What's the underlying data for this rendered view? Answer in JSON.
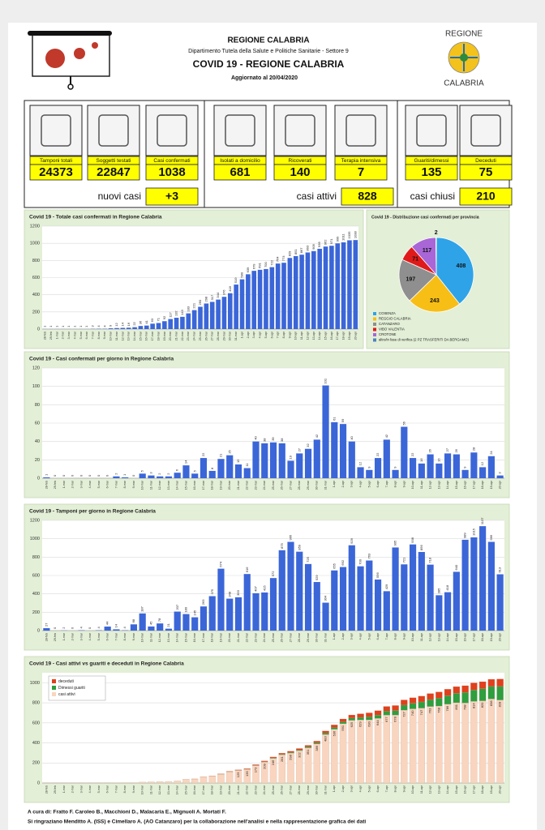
{
  "header": {
    "region": "REGIONE CALABRIA",
    "department": "Dipartimento Tutela della Salute e Politiche Sanitarie - Settore 9",
    "title": "COVID 19 - REGIONE CALABRIA",
    "updated": "Aggiornato al  20/04/2020",
    "logo_top": "REGIONE",
    "logo_bottom": "CALABRIA"
  },
  "stats": [
    {
      "label": "Tamponi totali",
      "value": 24373
    },
    {
      "label": "Soggetti testati",
      "value": 22847
    },
    {
      "label": "Casi confermati",
      "value": 1038
    },
    {
      "label": "Isolati a domicilio",
      "value": 681
    },
    {
      "label": "Ricoverati",
      "value": 140
    },
    {
      "label": "Terapia intensiva",
      "value": 7
    },
    {
      "label": "Guariti/dimessi",
      "value": 135
    },
    {
      "label": "Deceduti",
      "value": 75
    }
  ],
  "summary": [
    {
      "label": "nuovi casi",
      "value": "+3"
    },
    {
      "label": "casi attivi",
      "value": 828
    },
    {
      "label": "casi chiusi",
      "value": 210
    }
  ],
  "chart_data": [
    {
      "type": "bar",
      "title": "Covid 19 - Totale casi confermati in Regione Calabria",
      "categories": [
        "28-feb",
        "29-feb",
        "1-mar",
        "2-mar",
        "3-mar",
        "4-mar",
        "5-mar",
        "6-mar",
        "7-mar",
        "8-mar",
        "9-mar",
        "10-mar",
        "11-mar",
        "12-mar",
        "13-mar",
        "14-mar",
        "15-mar",
        "16-mar",
        "17-mar",
        "18-mar",
        "19-mar",
        "20-mar",
        "21-mar",
        "22-mar",
        "23-mar",
        "24-mar",
        "25-mar",
        "26-mar",
        "27-mar",
        "28-mar",
        "29-mar",
        "30-mar",
        "31-mar",
        "1-apr",
        "2-apr",
        "3-apr",
        "4-apr",
        "5-apr",
        "6-apr",
        "7-apr",
        "8-apr",
        "9-apr",
        "10-apr",
        "11-apr",
        "12-apr",
        "13-apr",
        "14-apr",
        "15-apr",
        "16-apr",
        "17-apr",
        "18-apr",
        "19-apr",
        "20-apr"
      ],
      "values": [
        1,
        1,
        1,
        1,
        1,
        1,
        1,
        1,
        3,
        4,
        4,
        9,
        12,
        14,
        16,
        22,
        36,
        41,
        63,
        71,
        92,
        117,
        132,
        143,
        183,
        221,
        260,
        298,
        317,
        344,
        376,
        418,
        519,
        580,
        639,
        679,
        691,
        700,
        722,
        764,
        773,
        829,
        851,
        867,
        893,
        909,
        936,
        962,
        971,
        999,
        1011,
        1035,
        1038
      ],
      "color": "#3b66d8",
      "ylim": [
        0,
        1200
      ],
      "yticks": [
        0,
        200,
        400,
        600,
        800,
        1000,
        1200
      ],
      "grid": true
    },
    {
      "type": "pie",
      "title": "Covid 19 - Distribuzione casi confermati per provincia",
      "categories": [
        "COSENZA",
        "REGGIO CALABRIA",
        "CATANZARO",
        "VIBO VALENTIA",
        "CROTONE",
        "altro/in fase di verifica (2 PZ TRASFERITI DA BERGAMO)"
      ],
      "values": [
        408,
        243,
        197,
        71,
        117,
        2
      ],
      "colors": [
        "#2ea3e8",
        "#f7be16",
        "#8f8f8f",
        "#e01a1a",
        "#a866d6",
        "#4f81bd"
      ]
    },
    {
      "type": "bar",
      "title": "Covid 19 - Casi confermati per giorno in Regione Calabria",
      "categories": [
        "28-feb",
        "29-feb",
        "1-mar",
        "2-mar",
        "3-mar",
        "4-mar",
        "5-mar",
        "6-mar",
        "7-mar",
        "8-mar",
        "9-mar",
        "10-mar",
        "11-mar",
        "12-mar",
        "13-mar",
        "14-mar",
        "15-mar",
        "16-mar",
        "17-mar",
        "18-mar",
        "19-mar",
        "20-mar",
        "21-mar",
        "22-mar",
        "23-mar",
        "24-mar",
        "25-mar",
        "26-mar",
        "27-mar",
        "28-mar",
        "29-mar",
        "30-mar",
        "31-mar",
        "1-apr",
        "2-apr",
        "3-apr",
        "4-apr",
        "5-apr",
        "6-apr",
        "7-apr",
        "8-apr",
        "9-apr",
        "10-apr",
        "11-apr",
        "12-apr",
        "13-apr",
        "14-apr",
        "15-apr",
        "16-apr",
        "17-apr",
        "18-apr",
        "19-apr",
        "20-apr"
      ],
      "values": [
        1,
        0,
        0,
        0,
        0,
        0,
        0,
        0,
        2,
        1,
        0,
        5,
        3,
        2,
        2,
        6,
        14,
        5,
        22,
        8,
        21,
        25,
        15,
        11,
        40,
        38,
        39,
        38,
        19,
        27,
        32,
        42,
        101,
        61,
        59,
        40,
        12,
        9,
        22,
        42,
        9,
        56,
        22,
        16,
        26,
        16,
        27,
        26,
        9,
        28,
        12,
        24,
        3
      ],
      "color": "#3b66d8",
      "ylim": [
        0,
        120
      ],
      "yticks": [
        0,
        20,
        40,
        60,
        80,
        100,
        120
      ],
      "grid": true
    },
    {
      "type": "bar",
      "title": "Covid 19 - Tamponi per giorno in Regione Calabria",
      "categories": [
        "28-feb",
        "29-feb",
        "1-mar",
        "2-mar",
        "3-mar",
        "4-mar",
        "5-mar",
        "6-mar",
        "7-mar",
        "8-mar",
        "9-mar",
        "10-mar",
        "11-mar",
        "12-mar",
        "13-mar",
        "14-mar",
        "15-mar",
        "16-mar",
        "17-mar",
        "18-mar",
        "19-mar",
        "20-mar",
        "21-mar",
        "22-mar",
        "23-mar",
        "24-mar",
        "25-mar",
        "26-mar",
        "27-mar",
        "28-mar",
        "29-mar",
        "30-mar",
        "31-mar",
        "1-apr",
        "2-apr",
        "3-apr",
        "4-apr",
        "5-apr",
        "6-apr",
        "7-apr",
        "8-apr",
        "9-apr",
        "10-apr",
        "11-apr",
        "12-apr",
        "13-apr",
        "14-apr",
        "15-apr",
        "16-apr",
        "17-apr",
        "18-apr",
        "19-apr",
        "20-apr"
      ],
      "values": [
        27,
        0,
        2,
        0,
        4,
        0,
        4,
        44,
        14,
        4,
        68,
        187,
        45,
        78,
        21,
        207,
        180,
        145,
        263,
        375,
        674,
        348,
        363,
        616,
        407,
        415,
        572,
        875,
        966,
        859,
        725,
        529,
        304,
        655,
        692,
        929,
        700,
        763,
        556,
        429,
        905,
        721,
        938,
        856,
        718,
        385,
        418,
        640,
        989,
        1015,
        1137,
        966,
        613
      ],
      "color": "#3b66d8",
      "ylim": [
        0,
        1200
      ],
      "yticks": [
        0,
        200,
        400,
        600,
        800,
        1000,
        1200
      ],
      "grid": true
    },
    {
      "type": "stacked_bar",
      "title": "Covid 19 - Casi attivi vs guariti e deceduti in Regione Calabria",
      "categories": [
        "28-feb",
        "29-feb",
        "1-mar",
        "2-mar",
        "3-mar",
        "4-mar",
        "5-mar",
        "6-mar",
        "7-mar",
        "8-mar",
        "9-mar",
        "10-mar",
        "11-mar",
        "12-mar",
        "13-mar",
        "14-mar",
        "15-mar",
        "16-mar",
        "17-mar",
        "18-mar",
        "19-mar",
        "20-mar",
        "21-mar",
        "22-mar",
        "23-mar",
        "24-mar",
        "25-mar",
        "26-mar",
        "27-mar",
        "28-mar",
        "29-mar",
        "30-mar",
        "31-mar",
        "1-apr",
        "2-apr",
        "3-apr",
        "4-apr",
        "5-apr",
        "6-apr",
        "7-apr",
        "8-apr",
        "9-apr",
        "10-apr",
        "11-apr",
        "12-apr",
        "13-apr",
        "14-apr",
        "15-apr",
        "16-apr",
        "17-apr",
        "18-apr",
        "19-apr",
        "20-apr"
      ],
      "series": [
        {
          "name": "deceduti",
          "color": "#e0401c",
          "values": [
            0,
            0,
            0,
            0,
            0,
            0,
            0,
            0,
            0,
            0,
            0,
            0,
            0,
            0,
            0,
            0,
            1,
            1,
            1,
            2,
            3,
            4,
            5,
            6,
            7,
            8,
            9,
            11,
            12,
            14,
            15,
            17,
            21,
            26,
            28,
            31,
            36,
            40,
            44,
            47,
            50,
            52,
            55,
            58,
            60,
            63,
            64,
            66,
            68,
            70,
            71,
            72,
            75
          ]
        },
        {
          "name": "Dimessi guariti",
          "color": "#2e9e3e",
          "values": [
            0,
            0,
            0,
            0,
            0,
            0,
            0,
            0,
            0,
            0,
            0,
            0,
            0,
            0,
            0,
            0,
            0,
            0,
            0,
            0,
            1,
            1,
            2,
            2,
            3,
            4,
            5,
            6,
            7,
            8,
            10,
            12,
            15,
            18,
            20,
            23,
            26,
            30,
            34,
            40,
            45,
            50,
            56,
            62,
            70,
            78,
            86,
            95,
            105,
            115,
            120,
            125,
            135
          ]
        },
        {
          "name": "casi attivi",
          "color": "#f9d5bf",
          "values": [
            1,
            1,
            1,
            1,
            1,
            1,
            1,
            1,
            3,
            4,
            4,
            9,
            12,
            14,
            16,
            22,
            35,
            40,
            62,
            69,
            88,
            112,
            125,
            135,
            173,
            209,
            246,
            281,
            298,
            322,
            351,
            389,
            483,
            536,
            591,
            625,
            629,
            630,
            644,
            677,
            678,
            727,
            740,
            747,
            763,
            768,
            786,
            801,
            798,
            814,
            820,
            838,
            828
          ]
        }
      ],
      "ylim": [
        0,
        1100
      ],
      "yticks": [
        0,
        200,
        400,
        600,
        800,
        1000
      ],
      "grid": true
    }
  ],
  "footer": [
    "A cura di: Fratto F. Caroleo B., Macchioni D., Malacaria E., Mignuoli A. Mortati F.",
    "Si ringraziano Menditto A. (ISS) e Cimellaro A. (AO Catanzaro) per la collaborazione nell'analisi e nella rappresentazione grafica dei dati"
  ]
}
